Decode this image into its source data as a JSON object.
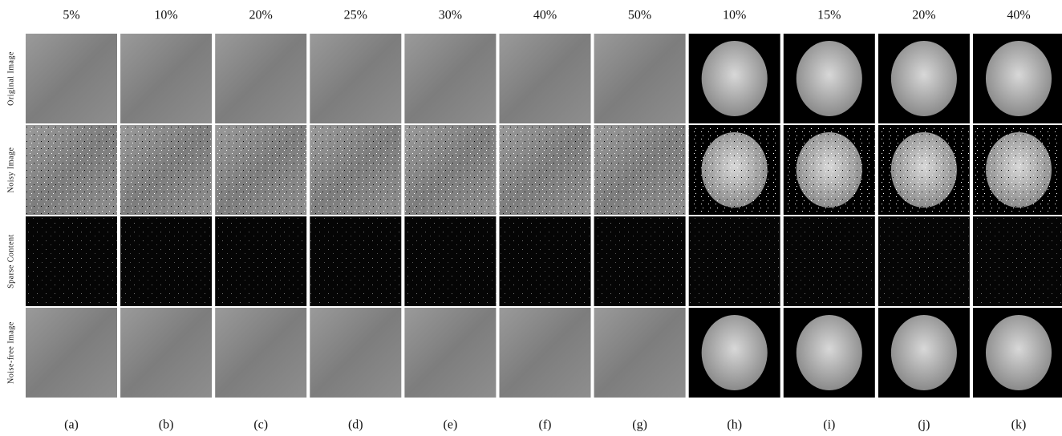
{
  "columns": [
    {
      "header": "5%",
      "caption": "(a)"
    },
    {
      "header": "10%",
      "caption": "(b)"
    },
    {
      "header": "20%",
      "caption": "(c)"
    },
    {
      "header": "25%",
      "caption": "(d)"
    },
    {
      "header": "30%",
      "caption": "(e)"
    },
    {
      "header": "40%",
      "caption": "(f)"
    },
    {
      "header": "50%",
      "caption": "(g)"
    },
    {
      "header": "10%",
      "caption": "(h)"
    },
    {
      "header": "15%",
      "caption": "(i)"
    },
    {
      "header": "20%",
      "caption": "(j)"
    },
    {
      "header": "40%",
      "caption": "(k)"
    }
  ],
  "rows": [
    "Original Image",
    "Noisy Image",
    "Sparse Content",
    "Noise-free Image"
  ]
}
